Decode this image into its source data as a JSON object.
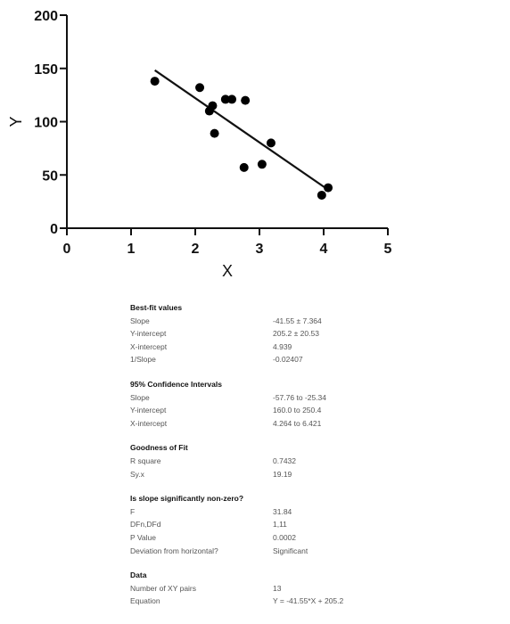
{
  "chart_data": {
    "type": "scatter",
    "x": [
      1.37,
      2.07,
      2.22,
      2.27,
      2.3,
      2.47,
      2.57,
      2.78,
      2.76,
      3.04,
      3.18,
      3.97,
      4.07
    ],
    "y": [
      138,
      132,
      110,
      115,
      89,
      121,
      121,
      120,
      57,
      60,
      80,
      31,
      38
    ],
    "fit_line": {
      "slope": -41.55,
      "intercept": 205.2,
      "x_range": [
        1.37,
        4.07
      ]
    },
    "xlabel": "X",
    "ylabel": "Y",
    "xlim": [
      0,
      5
    ],
    "ylim": [
      0,
      200
    ],
    "xticks": [
      "0",
      "1",
      "2",
      "3",
      "4",
      "5"
    ],
    "yticks": [
      "0",
      "50",
      "100",
      "150",
      "200"
    ],
    "grid": false,
    "legend": "none"
  },
  "stats": [
    {
      "title": "Best-fit values",
      "rows": [
        {
          "label": "Slope",
          "value": "-41.55 ± 7.364"
        },
        {
          "label": "Y-intercept",
          "value": "205.2 ± 20.53"
        },
        {
          "label": "X-intercept",
          "value": "4.939"
        },
        {
          "label": "1/Slope",
          "value": "-0.02407"
        }
      ]
    },
    {
      "title": "95% Confidence Intervals",
      "rows": [
        {
          "label": "Slope",
          "value": "-57.76 to -25.34"
        },
        {
          "label": "Y-intercept",
          "value": "160.0 to 250.4"
        },
        {
          "label": "X-intercept",
          "value": "4.264 to 6.421"
        }
      ]
    },
    {
      "title": "Goodness of Fit",
      "rows": [
        {
          "label": "R square",
          "value": "0.7432"
        },
        {
          "label": "Sy.x",
          "value": "19.19"
        }
      ]
    },
    {
      "title": "Is slope significantly non-zero?",
      "rows": [
        {
          "label": "F",
          "value": "31.84"
        },
        {
          "label": "DFn,DFd",
          "value": "1,11"
        },
        {
          "label": "P Value",
          "value": "0.0002"
        },
        {
          "label": "Deviation from horizontal?",
          "value": "Significant"
        }
      ]
    },
    {
      "title": "Data",
      "rows": [
        {
          "label": "Number of XY pairs",
          "value": "13"
        },
        {
          "label": "Equation",
          "value": "Y = -41.55*X + 205.2"
        }
      ]
    }
  ]
}
